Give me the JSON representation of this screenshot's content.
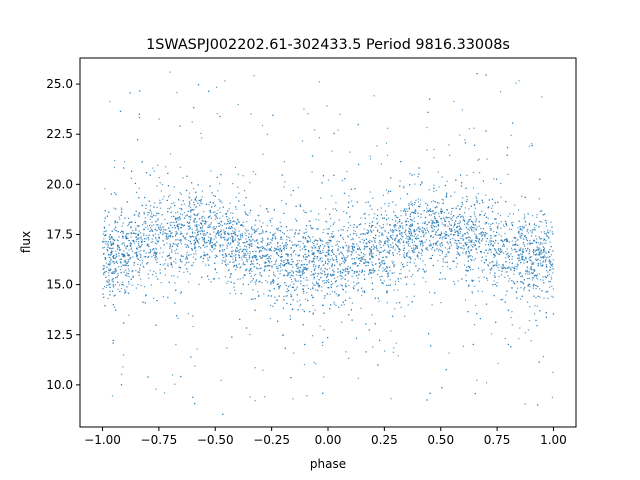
{
  "chart_data": {
    "type": "scatter",
    "title": "1SWASPJ002202.61-302433.5 Period 9816.33008s",
    "xlabel": "phase",
    "ylabel": "flux",
    "xlim": [
      -1.1,
      1.1
    ],
    "ylim": [
      7.9,
      26.3
    ],
    "xticks": [
      -1.0,
      -0.75,
      -0.5,
      -0.25,
      0.0,
      0.25,
      0.5,
      0.75,
      1.0
    ],
    "xtick_labels": [
      "−1.00",
      "−0.75",
      "−0.50",
      "−0.25",
      "0.00",
      "0.25",
      "0.50",
      "0.75",
      "1.00"
    ],
    "yticks": [
      10.0,
      12.5,
      15.0,
      17.5,
      20.0,
      22.5,
      25.0
    ],
    "ytick_labels": [
      "10.0",
      "12.5",
      "15.0",
      "17.5",
      "20.0",
      "22.5",
      "25.0"
    ],
    "grid": false,
    "point_color": "#1f77b4",
    "series": [
      {
        "x": [
          -1.0,
          -0.9,
          -0.8,
          -0.7,
          -0.6,
          -0.5,
          -0.4,
          -0.3,
          -0.2,
          -0.1,
          0.0,
          0.1,
          0.2,
          0.3,
          0.4,
          0.5,
          0.6,
          0.7,
          0.8,
          0.9,
          1.0
        ],
        "y": [
          16.3,
          16.7,
          17.2,
          17.6,
          17.7,
          17.5,
          17.0,
          16.6,
          16.2,
          16.0,
          16.0,
          16.3,
          16.8,
          17.3,
          17.6,
          17.7,
          17.5,
          17.1,
          16.7,
          16.3,
          16.1
        ]
      }
    ]
  }
}
